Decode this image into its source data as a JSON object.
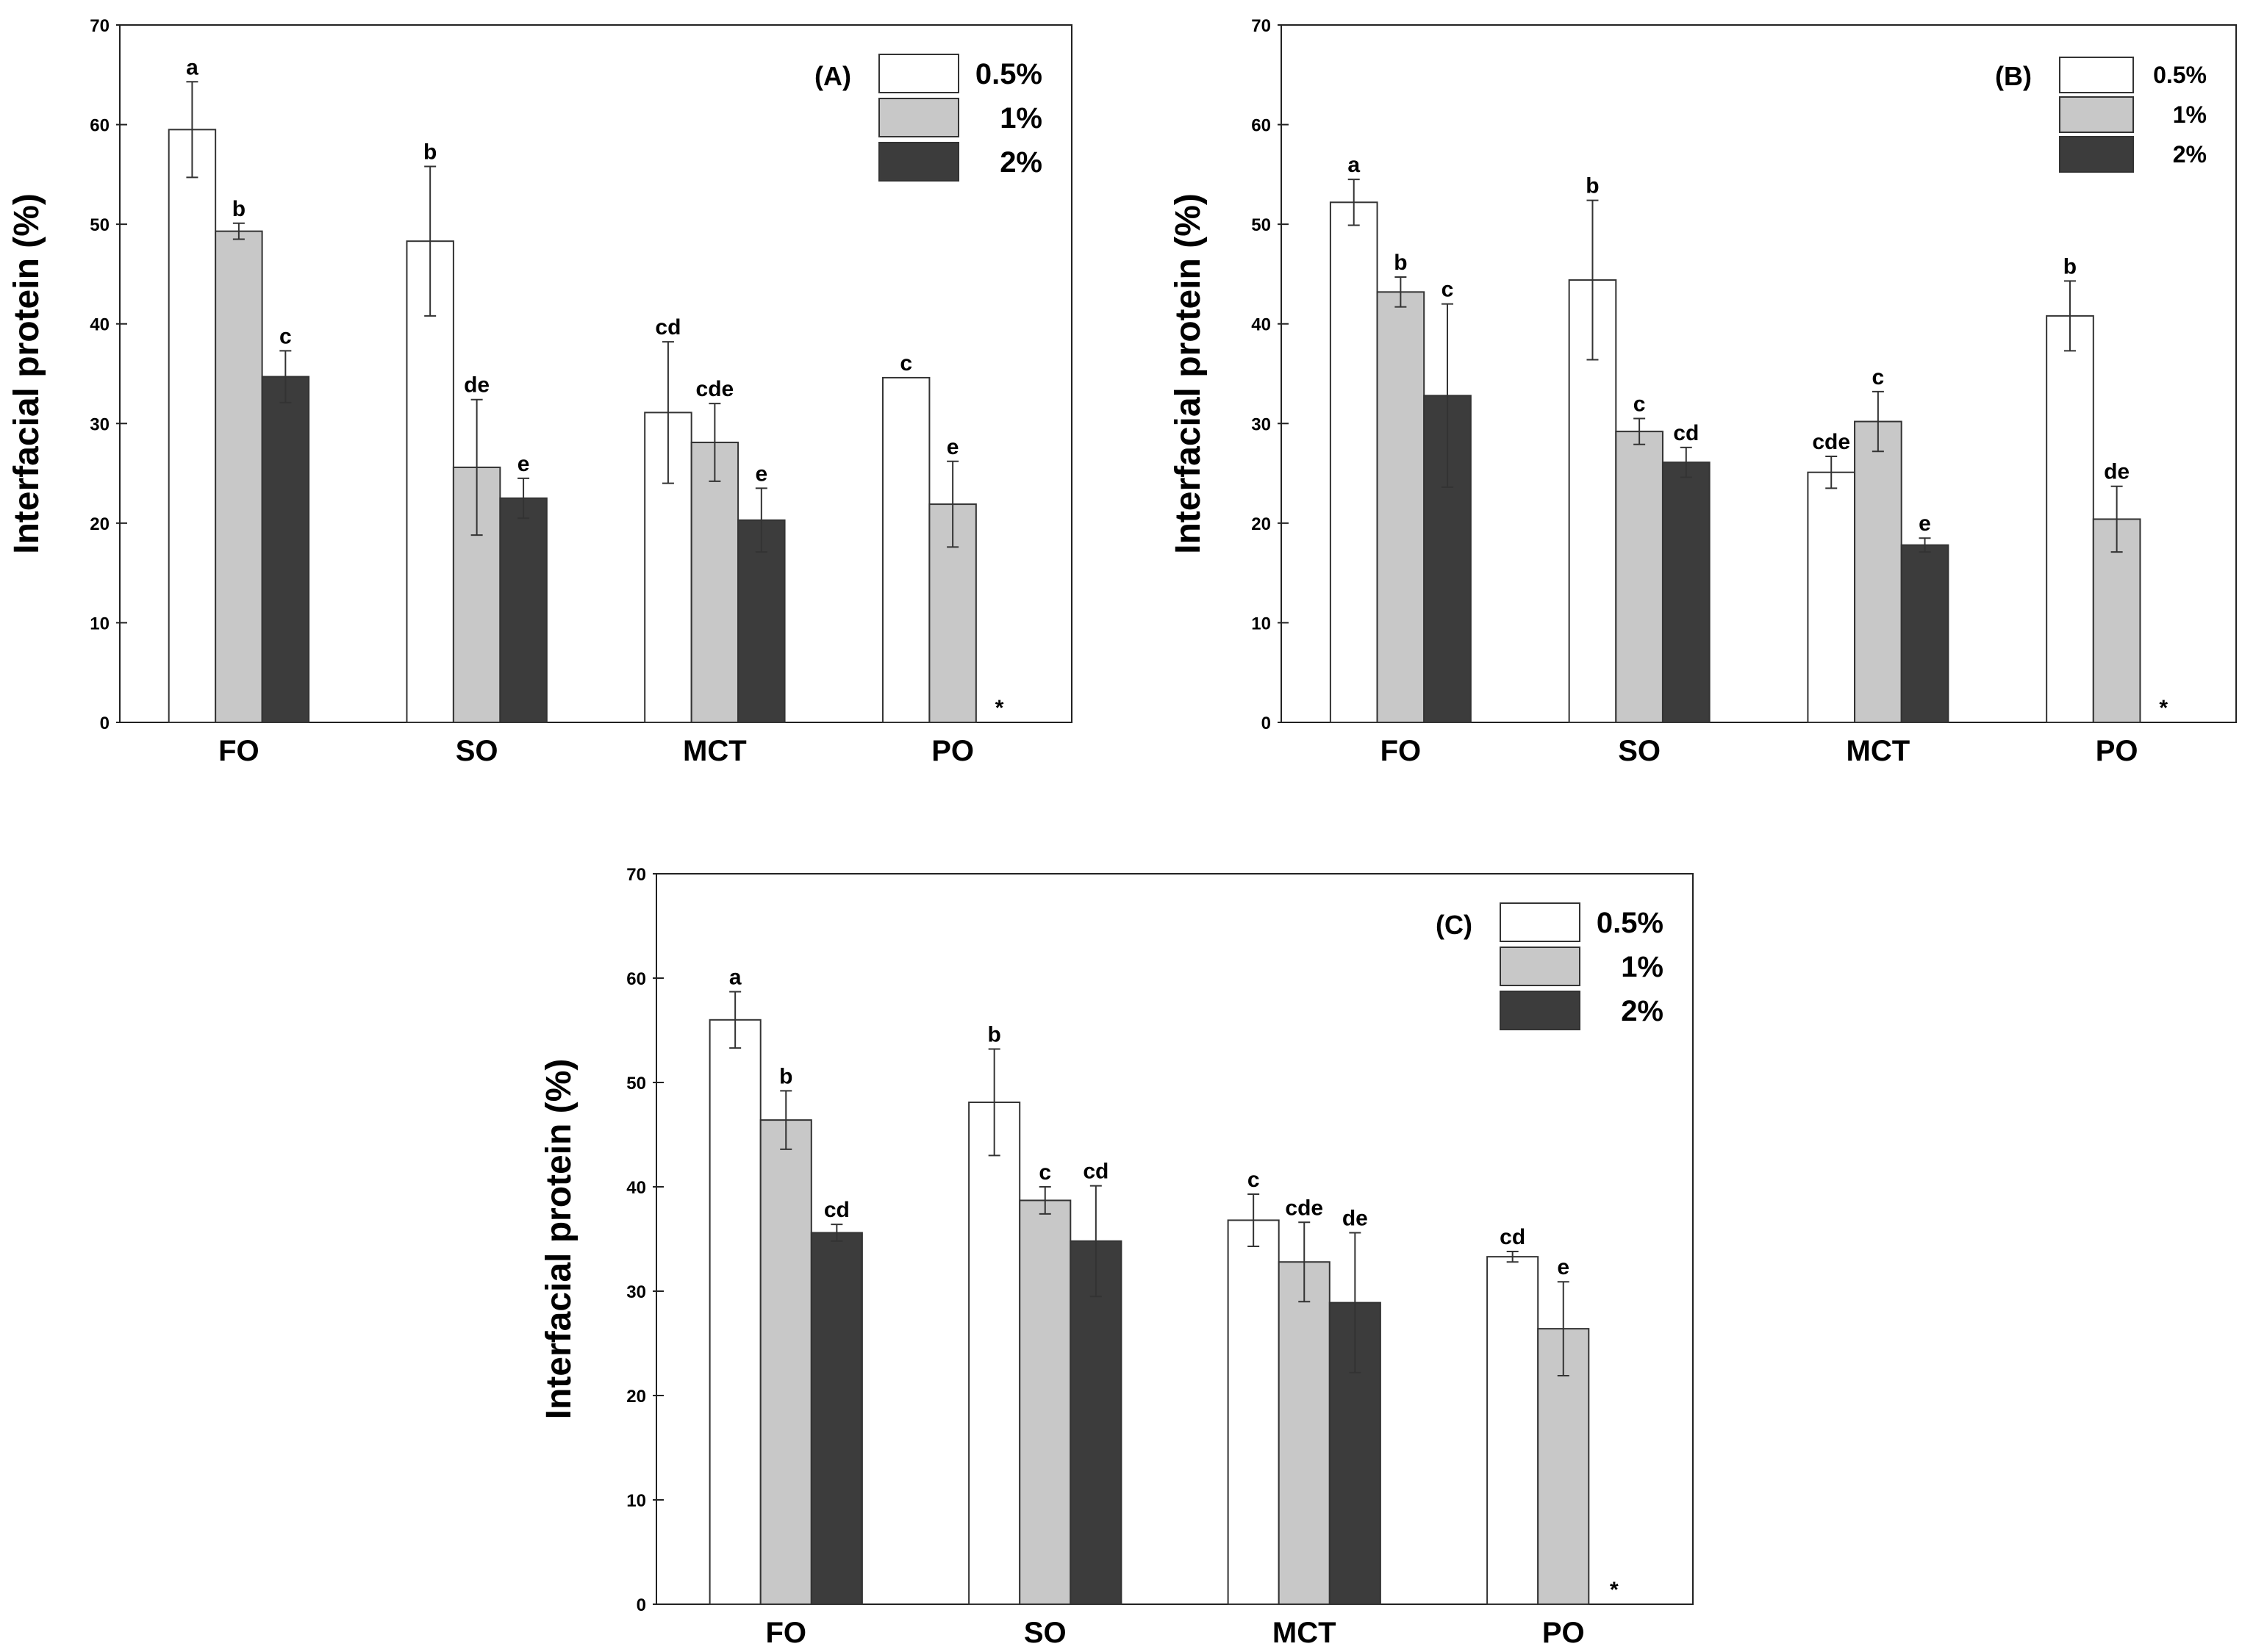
{
  "chart_data": [
    {
      "type": "bar",
      "panel_label": "(A)",
      "categories": [
        "FO",
        "SO",
        "MCT",
        "PO"
      ],
      "ylabel": "Interfacial protein (%)",
      "ylim": [
        0,
        70
      ],
      "yticks": [
        "0",
        "10",
        "20",
        "30",
        "40",
        "50",
        "60",
        "70"
      ],
      "missing_marker": "*",
      "legend_position": "top-right",
      "series": [
        {
          "name": "0.5%",
          "color": "#ffffff",
          "values": [
            59.5,
            48.3,
            31.1,
            34.6
          ],
          "errors": [
            4.8,
            7.5,
            7.1,
            0.0
          ],
          "labels": [
            "a",
            "b",
            "cd",
            "c"
          ]
        },
        {
          "name": "1%",
          "color": "#c8c8c8",
          "values": [
            49.3,
            25.6,
            28.1,
            21.9
          ],
          "errors": [
            0.8,
            6.8,
            3.9,
            4.3
          ],
          "labels": [
            "b",
            "de",
            "cde",
            "e"
          ]
        },
        {
          "name": "2%",
          "color": "#3c3c3c",
          "values": [
            34.7,
            22.5,
            20.3,
            null
          ],
          "errors": [
            2.6,
            2.0,
            3.2,
            null
          ],
          "labels": [
            "c",
            "e",
            "e",
            ""
          ]
        }
      ]
    },
    {
      "type": "bar",
      "panel_label": "(B)",
      "categories": [
        "FO",
        "SO",
        "MCT",
        "PO"
      ],
      "ylabel": "Interfacial protein (%)",
      "ylim": [
        0,
        70
      ],
      "yticks": [
        "0",
        "10",
        "20",
        "30",
        "40",
        "50",
        "60",
        "70"
      ],
      "missing_marker": "*",
      "legend_position": "top-right",
      "series": [
        {
          "name": "0.5%",
          "color": "#ffffff",
          "values": [
            52.2,
            44.4,
            25.1,
            40.8
          ],
          "errors": [
            2.3,
            8.0,
            1.6,
            3.5
          ],
          "labels": [
            "a",
            "b",
            "cde",
            "b"
          ]
        },
        {
          "name": "1%",
          "color": "#c8c8c8",
          "values": [
            43.2,
            29.2,
            30.2,
            20.4
          ],
          "errors": [
            1.5,
            1.3,
            3.0,
            3.3
          ],
          "labels": [
            "b",
            "c",
            "c",
            "de"
          ]
        },
        {
          "name": "2%",
          "color": "#3c3c3c",
          "values": [
            32.8,
            26.1,
            17.8,
            null
          ],
          "errors": [
            9.2,
            1.5,
            0.7,
            null
          ],
          "labels": [
            "c",
            "cd",
            "e",
            ""
          ]
        }
      ]
    },
    {
      "type": "bar",
      "panel_label": "(C)",
      "categories": [
        "FO",
        "SO",
        "MCT",
        "PO"
      ],
      "ylabel": "Interfacial protein (%)",
      "ylim": [
        0,
        70
      ],
      "yticks": [
        "0",
        "10",
        "20",
        "30",
        "40",
        "50",
        "60",
        "70"
      ],
      "missing_marker": "*",
      "legend_position": "top-right",
      "series": [
        {
          "name": "0.5%",
          "color": "#ffffff",
          "values": [
            56.0,
            48.1,
            36.8,
            33.3
          ],
          "errors": [
            2.7,
            5.1,
            2.5,
            0.5
          ],
          "labels": [
            "a",
            "b",
            "c",
            "cd"
          ]
        },
        {
          "name": "1%",
          "color": "#c8c8c8",
          "values": [
            46.4,
            38.7,
            32.8,
            26.4
          ],
          "errors": [
            2.8,
            1.3,
            3.8,
            4.5
          ],
          "labels": [
            "b",
            "c",
            "cde",
            "e"
          ]
        },
        {
          "name": "2%",
          "color": "#3c3c3c",
          "values": [
            35.6,
            34.8,
            28.9,
            null
          ],
          "errors": [
            0.8,
            5.3,
            6.7,
            null
          ],
          "labels": [
            "cd",
            "cd",
            "de",
            ""
          ]
        }
      ]
    }
  ]
}
